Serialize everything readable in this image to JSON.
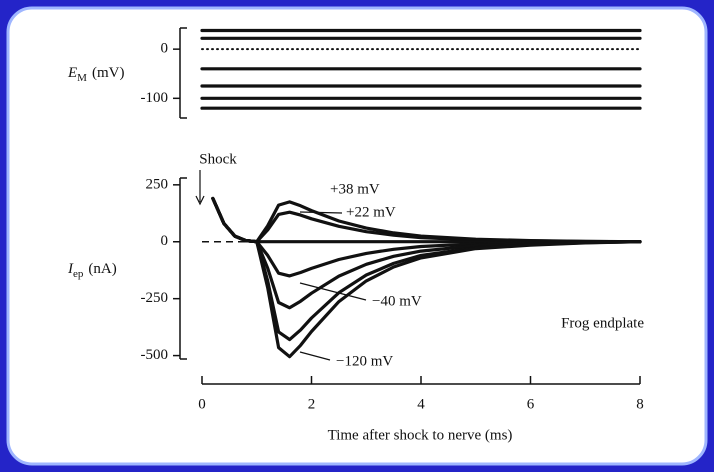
{
  "chart_data": [
    {
      "type": "line",
      "y_label_symbol": "E",
      "y_label_subscript": "M",
      "y_label_unit": "(mV)",
      "x": [
        0,
        8
      ],
      "xlim": [
        0,
        8
      ],
      "ylim": [
        -140,
        43
      ],
      "yticks": [
        0,
        -100
      ],
      "color": "#111111",
      "series": [
        {
          "values": [
            38,
            38
          ]
        },
        {
          "values": [
            22,
            22
          ]
        },
        {
          "values": [
            0,
            0
          ],
          "style": "dotted"
        },
        {
          "values": [
            -40,
            -40
          ]
        },
        {
          "values": [
            -75,
            -75
          ]
        },
        {
          "values": [
            -100,
            -100
          ]
        },
        {
          "values": [
            -120,
            -120
          ]
        }
      ]
    },
    {
      "type": "line",
      "y_label_symbol": "I",
      "y_label_subscript": "ep",
      "y_label_unit": "(nA)",
      "x_label": "Time after shock to nerve (ms)",
      "annotations": [
        "Shock",
        "Frog endplate"
      ],
      "x": [
        0.2,
        0.4,
        0.6,
        0.8,
        1.0,
        1.2,
        1.4,
        1.6,
        1.8,
        2.0,
        2.5,
        3,
        3.5,
        4,
        5,
        6,
        7,
        8
      ],
      "xlim": [
        0,
        8
      ],
      "xticks": [
        0,
        2,
        4,
        6,
        8
      ],
      "ylim": [
        -515,
        280
      ],
      "yticks": [
        250,
        0,
        -250,
        -500
      ],
      "color": "#111111",
      "series": [
        {
          "name": "+38 mV",
          "values": [
            190,
            80,
            25,
            5,
            0,
            70,
            161,
            175,
            158,
            137,
            91,
            60,
            39,
            25,
            11,
            5,
            2,
            0
          ]
        },
        {
          "name": "+22 mV",
          "values": [
            190,
            80,
            25,
            5,
            0,
            52,
            120,
            130,
            117,
            101,
            68,
            44,
            29,
            18,
            8,
            4,
            1,
            0
          ]
        },
        {
          "values": [
            190,
            80,
            25,
            5,
            0,
            0,
            0,
            0,
            0,
            0,
            0,
            0,
            0,
            0,
            0,
            0,
            0,
            0
          ]
        },
        {
          "name": "−40 mV",
          "values": [
            190,
            80,
            25,
            5,
            0,
            -60,
            -138,
            -150,
            -135,
            -117,
            -78,
            -51,
            -33,
            -21,
            -9,
            -5,
            -2,
            0
          ]
        },
        {
          "values": [
            190,
            80,
            25,
            5,
            0,
            -116,
            -267,
            -290,
            -261,
            -226,
            -151,
            -99,
            -64,
            -41,
            -17,
            -9,
            -3,
            0
          ]
        },
        {
          "values": [
            190,
            80,
            25,
            5,
            0,
            -172,
            -396,
            -430,
            -387,
            -335,
            -224,
            -146,
            -95,
            -60,
            -26,
            -13,
            -4,
            0
          ]
        },
        {
          "name": "−120 mV",
          "values": [
            190,
            80,
            25,
            5,
            0,
            -202,
            -465,
            -505,
            -455,
            -394,
            -263,
            -172,
            -111,
            -71,
            -30,
            -15,
            -5,
            0
          ]
        }
      ]
    }
  ]
}
